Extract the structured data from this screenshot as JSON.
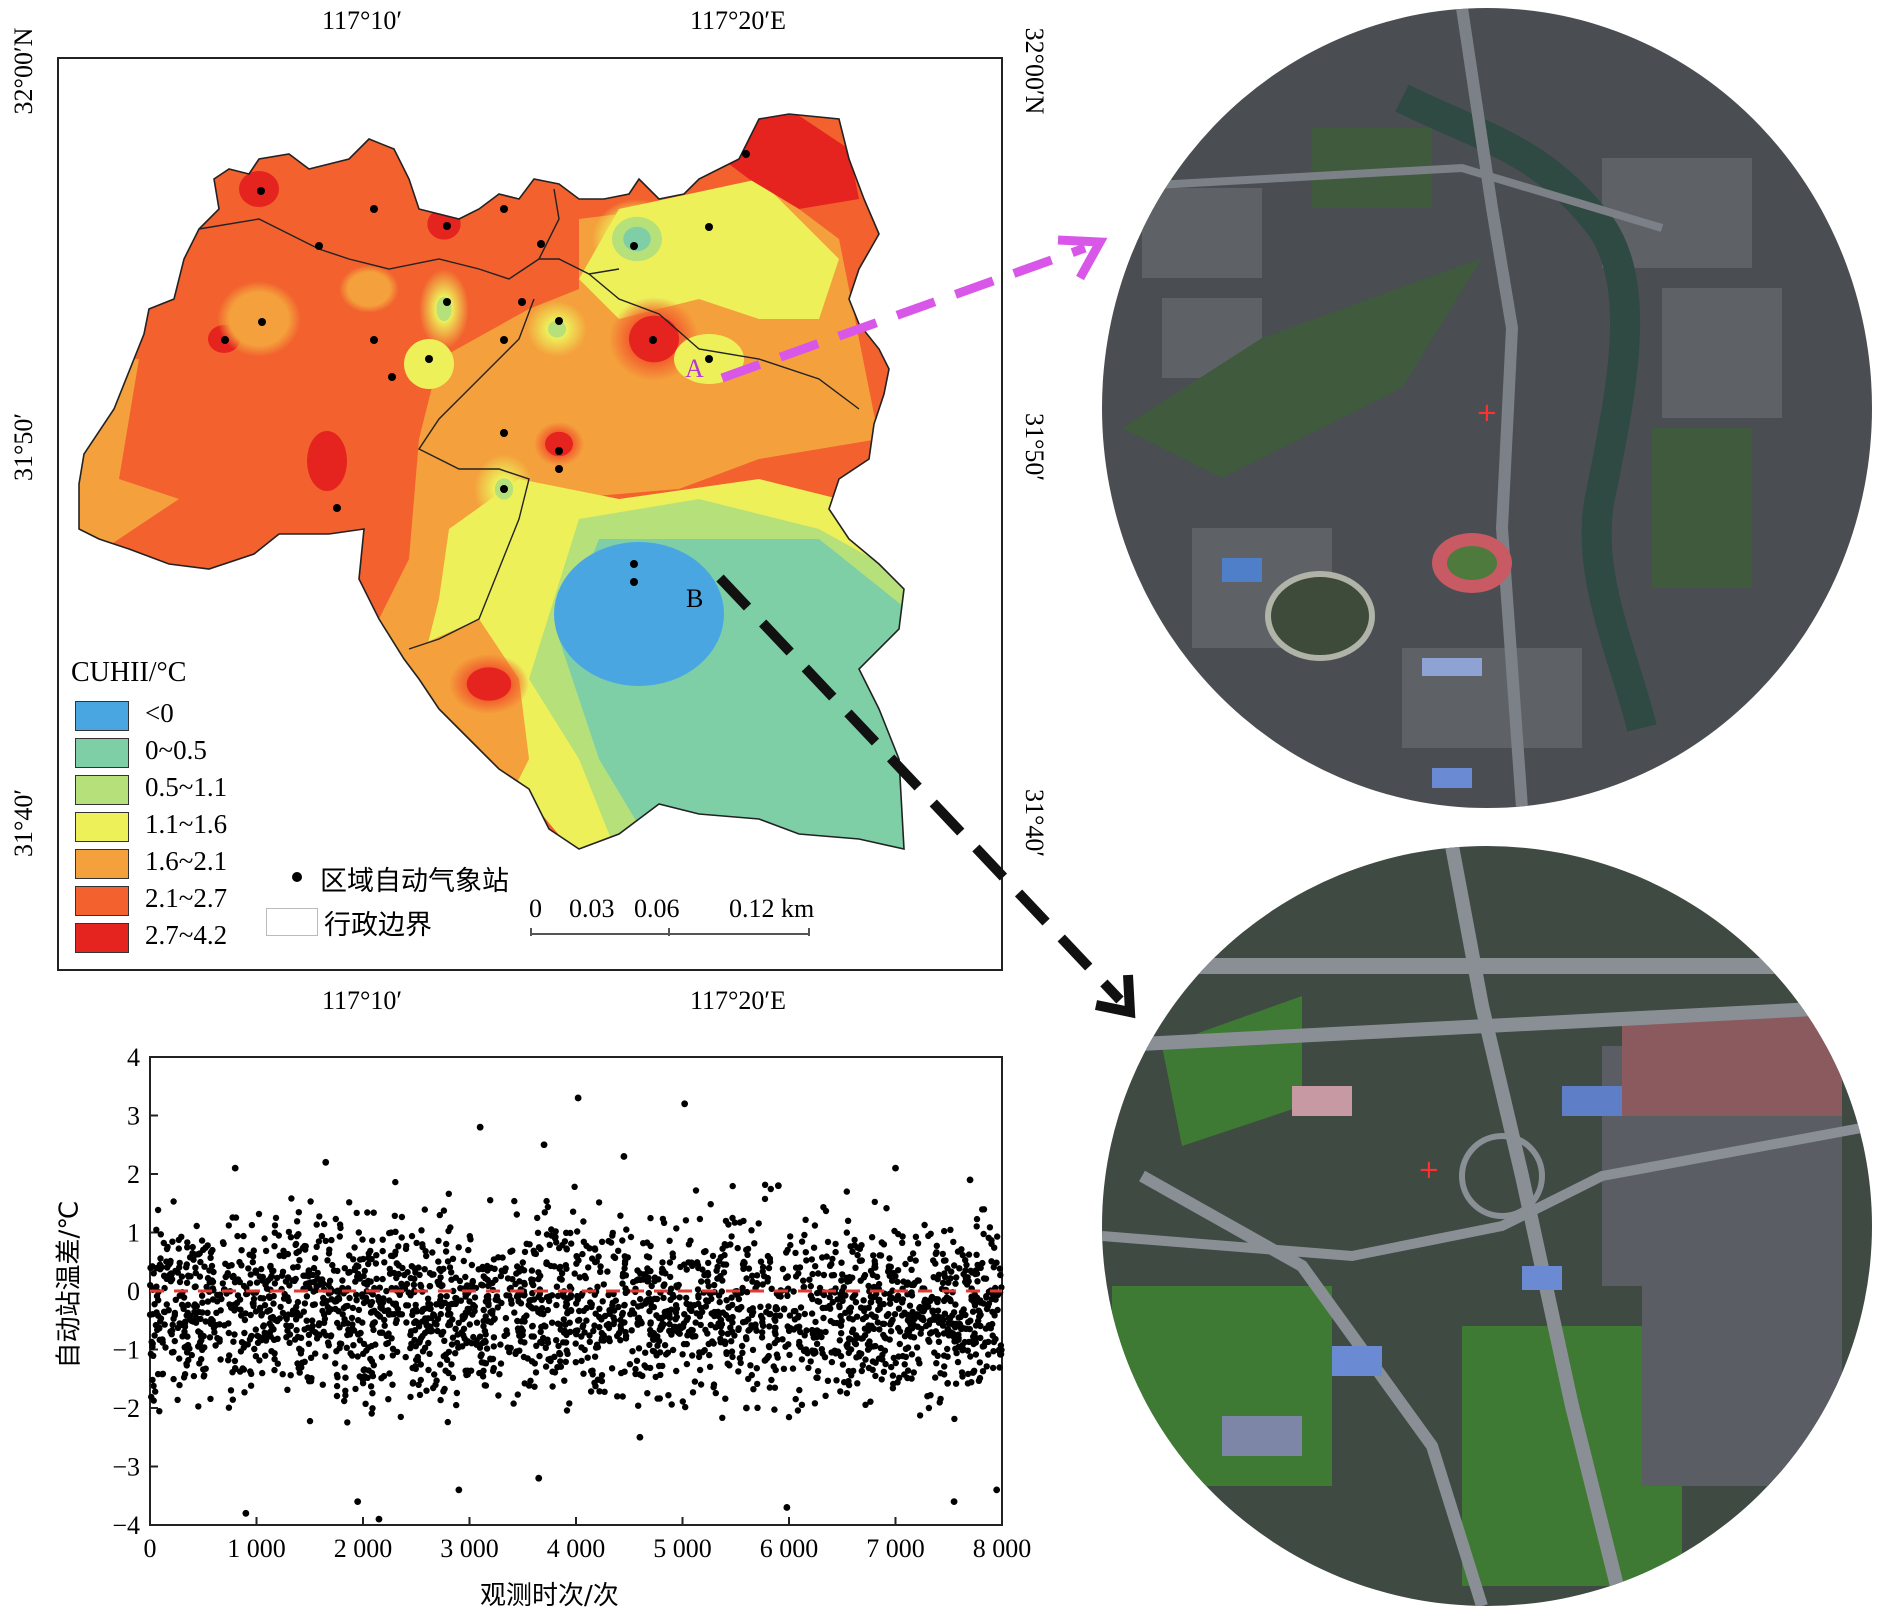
{
  "map": {
    "top_x_labels": [
      "117°10′",
      "117°20′E"
    ],
    "bottom_x_labels": [
      "117°10′",
      "117°20′E"
    ],
    "left_y_labels": [
      "32°00′N",
      "31°50′",
      "31°40′"
    ],
    "right_y_labels": [
      "32°00′N",
      "31°50′",
      "31°40′"
    ],
    "point_labels": [
      "A",
      "B"
    ],
    "scale_bar": {
      "labels": [
        "0",
        "0.03",
        "0.06",
        "0.12 km"
      ]
    },
    "legend": {
      "title": "CUHII/°C",
      "classes": [
        {
          "label": "<0",
          "color": "#4aa6e0"
        },
        {
          "label": "0~0.5",
          "color": "#7ecfa6"
        },
        {
          "label": "0.5~1.1",
          "color": "#b6e07a"
        },
        {
          "label": "1.1~1.6",
          "color": "#eef05a"
        },
        {
          "label": "1.6~2.1",
          "color": "#f4a03c"
        },
        {
          "label": "2.1~2.7",
          "color": "#f2612e"
        },
        {
          "label": "2.7~4.2",
          "color": "#e5231f"
        }
      ],
      "station_label": "区域自动气象站",
      "boundary_label": "行政边界"
    },
    "arrow_colors": {
      "A": "#d957e8",
      "B": "#111111"
    }
  },
  "satellite": {
    "top_description": "satellite image around station A",
    "bottom_description": "satellite image around station B"
  },
  "chart_data": {
    "type": "scatter",
    "title": "",
    "xlabel": "观测时次/次",
    "ylabel": "自动站温差/℃",
    "xlim": [
      0,
      8000
    ],
    "ylim": [
      -4,
      4
    ],
    "x_ticks": [
      "0",
      "1 000",
      "2 000",
      "3 000",
      "4 000",
      "5 000",
      "6 000",
      "7 000",
      "8 000"
    ],
    "y_ticks": [
      "4",
      "3",
      "2",
      "1",
      "0",
      "−1",
      "−2",
      "−3",
      "−4"
    ],
    "reference_line": {
      "y": 0,
      "color": "#e53935",
      "style": "dashed"
    },
    "notable_points": [
      {
        "x": 4020,
        "y": 3.3
      },
      {
        "x": 5020,
        "y": 3.2
      },
      {
        "x": 3100,
        "y": 2.8
      },
      {
        "x": 3700,
        "y": 2.5
      },
      {
        "x": 800,
        "y": 2.1
      },
      {
        "x": 1650,
        "y": 2.2
      },
      {
        "x": 7000,
        "y": 2.1
      },
      {
        "x": 7700,
        "y": 1.9
      },
      {
        "x": 5900,
        "y": 1.8
      },
      {
        "x": 4450,
        "y": 2.3
      },
      {
        "x": 900,
        "y": -3.8
      },
      {
        "x": 1950,
        "y": -3.6
      },
      {
        "x": 2150,
        "y": -3.9
      },
      {
        "x": 3650,
        "y": -3.2
      },
      {
        "x": 5980,
        "y": -3.7
      },
      {
        "x": 7950,
        "y": -3.4
      },
      {
        "x": 7550,
        "y": -3.6
      },
      {
        "x": 4600,
        "y": -2.5
      },
      {
        "x": 5600,
        "y": -2.0
      },
      {
        "x": 2900,
        "y": -3.4
      }
    ],
    "bulk_distribution": "dense band of ~8000 points mostly between -2.5 and 1.8, centered near -0.3"
  }
}
